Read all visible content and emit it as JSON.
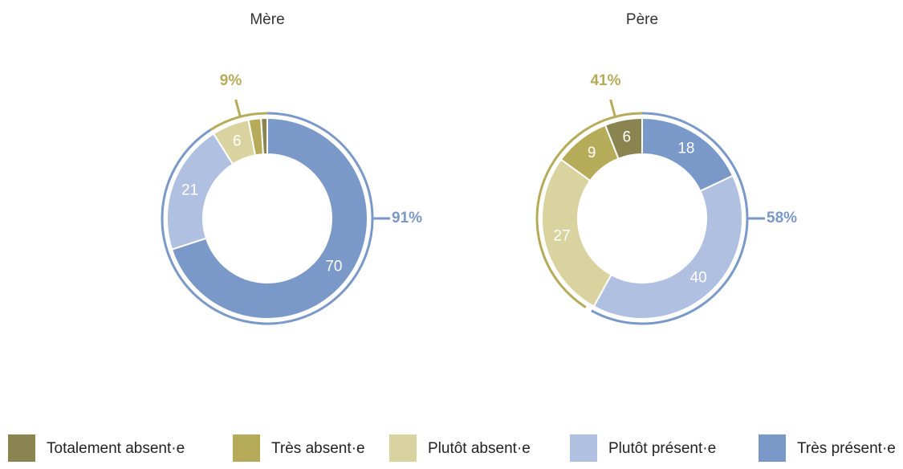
{
  "legend": {
    "categories": [
      "Totalement absent·e",
      "Très absent·e",
      "Plutôt absent·e",
      "Plutôt présent·e",
      "Très présent·e"
    ],
    "colors": [
      "#8a8550",
      "#b5ab58",
      "#d9d3a0",
      "#b0c0e0",
      "#7a98c8"
    ]
  },
  "chart_data": [
    {
      "type": "pie",
      "title": "Mère",
      "values": [
        1,
        2,
        6,
        21,
        70
      ],
      "absent_total": {
        "value": 9,
        "label": "9%"
      },
      "present_total": {
        "value": 91,
        "label": "91%"
      }
    },
    {
      "type": "pie",
      "title": "Père",
      "values": [
        6,
        9,
        27,
        40,
        18
      ],
      "absent_total": {
        "value": 41,
        "label": "41%"
      },
      "present_total": {
        "value": 58,
        "label": "58%"
      }
    }
  ]
}
